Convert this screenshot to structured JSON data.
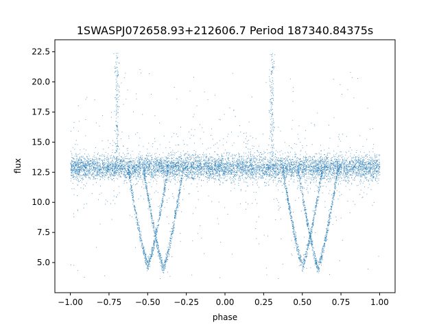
{
  "chart_data": {
    "type": "scatter",
    "title": "1SWASPJ072658.93+212606.7 Period 187340.84375s",
    "xlabel": "phase",
    "ylabel": "flux",
    "xlim": [
      -1.1,
      1.1
    ],
    "ylim": [
      2.5,
      23.5
    ],
    "xticks": [
      -1.0,
      -0.75,
      -0.5,
      -0.25,
      0.0,
      0.25,
      0.5,
      0.75,
      1.0
    ],
    "xtick_labels": [
      "−1.00",
      "−0.75",
      "−0.50",
      "−0.25",
      "0.00",
      "0.25",
      "0.50",
      "0.75",
      "1.00"
    ],
    "yticks": [
      5.0,
      7.5,
      10.0,
      12.5,
      15.0,
      17.5,
      20.0,
      22.5
    ],
    "ytick_labels": [
      "5.0",
      "7.5",
      "10.0",
      "12.5",
      "15.0",
      "17.5",
      "20.0",
      "22.5"
    ],
    "grid": false,
    "point_color": "#1f77b4",
    "series": [
      {
        "x_range": [
          -1.0,
          1.0
        ],
        "baseline_flux": 12.9,
        "baseline_scatter": 0.5,
        "dips": [
          {
            "phase_min": -0.5,
            "flux_min": 4.8
          },
          {
            "phase_min": -0.4,
            "flux_min": 4.6
          },
          {
            "phase_min": 0.5,
            "flux_min": 4.8
          },
          {
            "phase_min": 0.6,
            "flux_min": 4.6
          }
        ],
        "spikes": [
          {
            "phase": -0.7,
            "flux_max": 22.5
          },
          {
            "phase": 0.3,
            "flux_max": 22.5
          }
        ]
      }
    ]
  }
}
